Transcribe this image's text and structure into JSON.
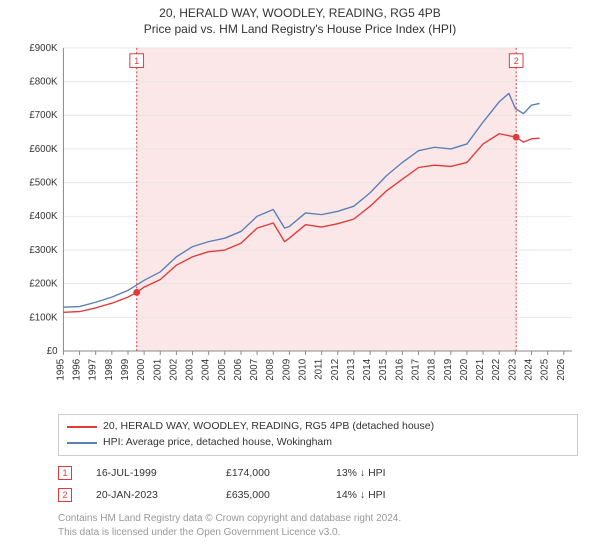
{
  "title_line1": "20, HERALD WAY, WOODLEY, READING, RG5 4PB",
  "title_line2": "Price paid vs. HM Land Registry's House Price Index (HPI)",
  "chart": {
    "type": "line",
    "background_color": "#ffffff",
    "grid_color": "#e6e6e6",
    "axis_color": "#888888",
    "x_range": [
      1995,
      2026.5
    ],
    "y_range": [
      0,
      900000
    ],
    "y_ticks": [
      0,
      100000,
      200000,
      300000,
      400000,
      500000,
      600000,
      700000,
      800000,
      900000
    ],
    "y_tick_labels": [
      "£0",
      "£100K",
      "£200K",
      "£300K",
      "£400K",
      "£500K",
      "£600K",
      "£700K",
      "£800K",
      "£900K"
    ],
    "x_ticks": [
      1995,
      1996,
      1997,
      1998,
      1999,
      2000,
      2001,
      2002,
      2003,
      2004,
      2005,
      2006,
      2007,
      2008,
      2009,
      2010,
      2011,
      2012,
      2013,
      2014,
      2015,
      2016,
      2017,
      2018,
      2019,
      2020,
      2021,
      2022,
      2023,
      2024,
      2025,
      2026
    ],
    "shading": {
      "x_from": 1999.54,
      "x_to": 2023.05,
      "fill": "#e03a3a"
    },
    "vlines": [
      {
        "x": 1999.54,
        "color": "#e03a3a"
      },
      {
        "x": 2023.05,
        "color": "#e03a3a"
      }
    ],
    "markers": [
      {
        "id": "1",
        "x": 1999.54,
        "y": 174000,
        "dot_color": "#e03a3a",
        "box_border": "#e03a3a",
        "box_text": "#e03a3a",
        "label_ypx": 6
      },
      {
        "id": "2",
        "x": 2023.05,
        "y": 635000,
        "dot_color": "#e03a3a",
        "box_border": "#e03a3a",
        "box_text": "#e03a3a",
        "label_ypx": 6
      }
    ],
    "series": [
      {
        "name": "HPI: Average price, detached house, Wokingham",
        "color": "#5a7fb5",
        "width": 1.4,
        "data": [
          [
            1995,
            130000
          ],
          [
            1996,
            132000
          ],
          [
            1997,
            145000
          ],
          [
            1998,
            160000
          ],
          [
            1999,
            180000
          ],
          [
            2000,
            210000
          ],
          [
            2001,
            235000
          ],
          [
            2002,
            280000
          ],
          [
            2003,
            310000
          ],
          [
            2004,
            325000
          ],
          [
            2005,
            335000
          ],
          [
            2006,
            355000
          ],
          [
            2007,
            400000
          ],
          [
            2008,
            420000
          ],
          [
            2008.7,
            365000
          ],
          [
            2009,
            370000
          ],
          [
            2010,
            410000
          ],
          [
            2011,
            405000
          ],
          [
            2012,
            415000
          ],
          [
            2013,
            430000
          ],
          [
            2014,
            470000
          ],
          [
            2015,
            520000
          ],
          [
            2016,
            560000
          ],
          [
            2017,
            595000
          ],
          [
            2018,
            605000
          ],
          [
            2019,
            600000
          ],
          [
            2020,
            615000
          ],
          [
            2021,
            680000
          ],
          [
            2022,
            740000
          ],
          [
            2022.6,
            765000
          ],
          [
            2023,
            720000
          ],
          [
            2023.5,
            705000
          ],
          [
            2024,
            730000
          ],
          [
            2024.5,
            735000
          ]
        ]
      },
      {
        "name": "20, HERALD WAY, WOODLEY, READING, RG5 4PB (detached house)",
        "color": "#e03a3a",
        "width": 1.4,
        "data": [
          [
            1995,
            115000
          ],
          [
            1996,
            117000
          ],
          [
            1997,
            128000
          ],
          [
            1998,
            142000
          ],
          [
            1999,
            160000
          ],
          [
            1999.54,
            174000
          ],
          [
            2000,
            190000
          ],
          [
            2001,
            212000
          ],
          [
            2002,
            255000
          ],
          [
            2003,
            280000
          ],
          [
            2004,
            295000
          ],
          [
            2005,
            300000
          ],
          [
            2006,
            320000
          ],
          [
            2007,
            365000
          ],
          [
            2008,
            380000
          ],
          [
            2008.7,
            325000
          ],
          [
            2009,
            335000
          ],
          [
            2010,
            375000
          ],
          [
            2011,
            368000
          ],
          [
            2012,
            378000
          ],
          [
            2013,
            392000
          ],
          [
            2014,
            430000
          ],
          [
            2015,
            475000
          ],
          [
            2016,
            510000
          ],
          [
            2017,
            545000
          ],
          [
            2018,
            552000
          ],
          [
            2019,
            548000
          ],
          [
            2020,
            560000
          ],
          [
            2021,
            615000
          ],
          [
            2022,
            645000
          ],
          [
            2023.05,
            635000
          ],
          [
            2023.5,
            620000
          ],
          [
            2024,
            630000
          ],
          [
            2024.5,
            632000
          ]
        ]
      }
    ]
  },
  "legend": {
    "items": [
      {
        "color": "#e03a3a",
        "label": "20, HERALD WAY, WOODLEY, READING, RG5 4PB (detached house)"
      },
      {
        "color": "#5a7fb5",
        "label": "HPI: Average price, detached house, Wokingham"
      }
    ]
  },
  "marker_rows": [
    {
      "id": "1",
      "color": "#e03a3a",
      "date": "16-JUL-1999",
      "price": "£174,000",
      "vs": "13% ↓ HPI"
    },
    {
      "id": "2",
      "color": "#e03a3a",
      "date": "20-JAN-2023",
      "price": "£635,000",
      "vs": "14% ↓ HPI"
    }
  ],
  "footer": {
    "line1": "Contains HM Land Registry data © Crown copyright and database right 2024.",
    "line2": "This data is licensed under the Open Government Licence v3.0."
  }
}
